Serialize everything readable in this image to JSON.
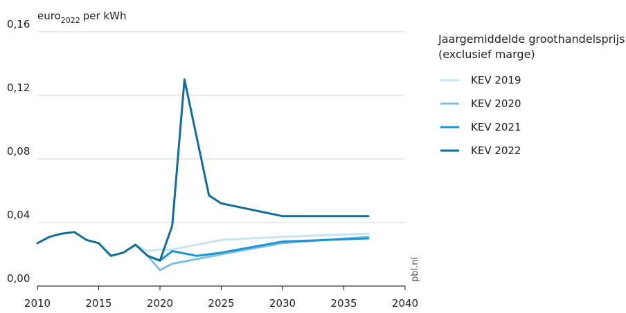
{
  "chart_data": {
    "type": "line",
    "y_unit_main": "euro",
    "y_unit_sub": "2022",
    "y_unit_suffix": "per kWh",
    "xlim": [
      2010,
      2040
    ],
    "ylim": [
      0,
      0.16
    ],
    "x_ticks": [
      {
        "value": 2010,
        "label": "2010"
      },
      {
        "value": 2015,
        "label": "2015"
      },
      {
        "value": 2020,
        "label": "2020"
      },
      {
        "value": 2025,
        "label": "2025"
      },
      {
        "value": 2030,
        "label": "2030"
      },
      {
        "value": 2035,
        "label": "2035"
      },
      {
        "value": 2040,
        "label": "2040"
      }
    ],
    "y_ticks": [
      {
        "value": 0,
        "label": "0,00"
      },
      {
        "value": 0.04,
        "label": "0,04"
      },
      {
        "value": 0.08,
        "label": "0,08"
      },
      {
        "value": 0.12,
        "label": "0,12"
      },
      {
        "value": 0.16,
        "label": "0,16"
      }
    ],
    "legend_title_lines": [
      "Jaargemiddelde groothandelsprijs",
      "(exclusief marge)"
    ],
    "legend_position": "right",
    "grid": true,
    "series": [
      {
        "name": "KEV 2019",
        "color": "#c9e2f2",
        "points": [
          [
            2018,
            0.026
          ],
          [
            2019,
            0.022
          ],
          [
            2020,
            0.023
          ],
          [
            2021,
            0.023
          ],
          [
            2025,
            0.029
          ],
          [
            2030,
            0.031
          ],
          [
            2037,
            0.033
          ]
        ]
      },
      {
        "name": "KEV 2020",
        "color": "#7fbfe3",
        "points": [
          [
            2018,
            0.026
          ],
          [
            2019,
            0.019
          ],
          [
            2020,
            0.01
          ],
          [
            2021,
            0.014
          ],
          [
            2025,
            0.02
          ],
          [
            2030,
            0.027
          ],
          [
            2037,
            0.031
          ]
        ]
      },
      {
        "name": "KEV 2021",
        "color": "#1b94d2",
        "points": [
          [
            2018,
            0.026
          ],
          [
            2019,
            0.019
          ],
          [
            2020,
            0.016
          ],
          [
            2021,
            0.022
          ],
          [
            2023,
            0.019
          ],
          [
            2025,
            0.021
          ],
          [
            2030,
            0.028
          ],
          [
            2037,
            0.03
          ]
        ]
      },
      {
        "name": "KEV 2022",
        "color": "#0f6d96",
        "points": [
          [
            2010,
            0.027
          ],
          [
            2011,
            0.031
          ],
          [
            2012,
            0.033
          ],
          [
            2013,
            0.034
          ],
          [
            2014,
            0.029
          ],
          [
            2015,
            0.027
          ],
          [
            2016,
            0.019
          ],
          [
            2017,
            0.021
          ],
          [
            2018,
            0.026
          ],
          [
            2019,
            0.019
          ],
          [
            2020,
            0.016
          ],
          [
            2021,
            0.038
          ],
          [
            2022,
            0.13
          ],
          [
            2024,
            0.057
          ],
          [
            2025,
            0.052
          ],
          [
            2030,
            0.044
          ],
          [
            2037,
            0.044
          ]
        ]
      }
    ]
  },
  "credit": "pbl.nl"
}
